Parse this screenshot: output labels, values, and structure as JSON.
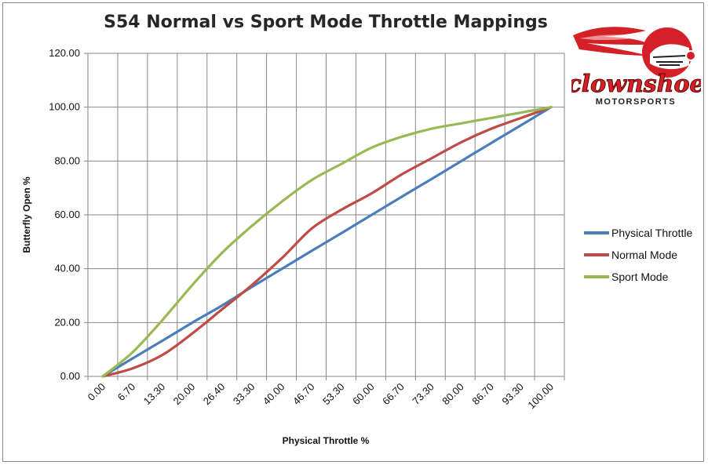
{
  "chart_data": {
    "type": "line",
    "title": "S54 Normal vs Sport Mode Throttle Mappings",
    "xlabel": "Physical Throttle %",
    "ylabel": "Butterfly Open %",
    "x_tick_labels": [
      "0.00",
      "6.70",
      "13.30",
      "20.00",
      "26.40",
      "33.30",
      "40.00",
      "46.70",
      "53.30",
      "60.00",
      "66.70",
      "73.30",
      "80.00",
      "86.70",
      "93.30",
      "100.00"
    ],
    "y_tick_labels": [
      "0.00",
      "20.00",
      "40.00",
      "60.00",
      "80.00",
      "100.00",
      "120.00"
    ],
    "ylim": [
      0,
      120
    ],
    "grid": true,
    "legend_position": "right",
    "series": [
      {
        "name": "Physical Throttle",
        "color": "#4a7ebb",
        "values": [
          0,
          6.7,
          13.3,
          20,
          26.4,
          33.3,
          40,
          46.7,
          53.3,
          60,
          66.7,
          73.3,
          80,
          86.7,
          93.3,
          100
        ]
      },
      {
        "name": "Normal Mode",
        "color": "#be4b48",
        "values": [
          0,
          3,
          8,
          16,
          25,
          34,
          44,
          55,
          62,
          68,
          75,
          81,
          87,
          92,
          96,
          100
        ]
      },
      {
        "name": "Sport Mode",
        "color": "#98b954",
        "values": [
          0,
          9,
          21,
          34,
          46,
          56,
          65,
          73,
          79,
          85,
          89,
          92,
          94,
          96,
          98,
          100
        ]
      }
    ]
  },
  "logo": {
    "text_main": "clownshoe",
    "text_sub": "MOTORSPORTS",
    "color_red": "#d42027"
  }
}
